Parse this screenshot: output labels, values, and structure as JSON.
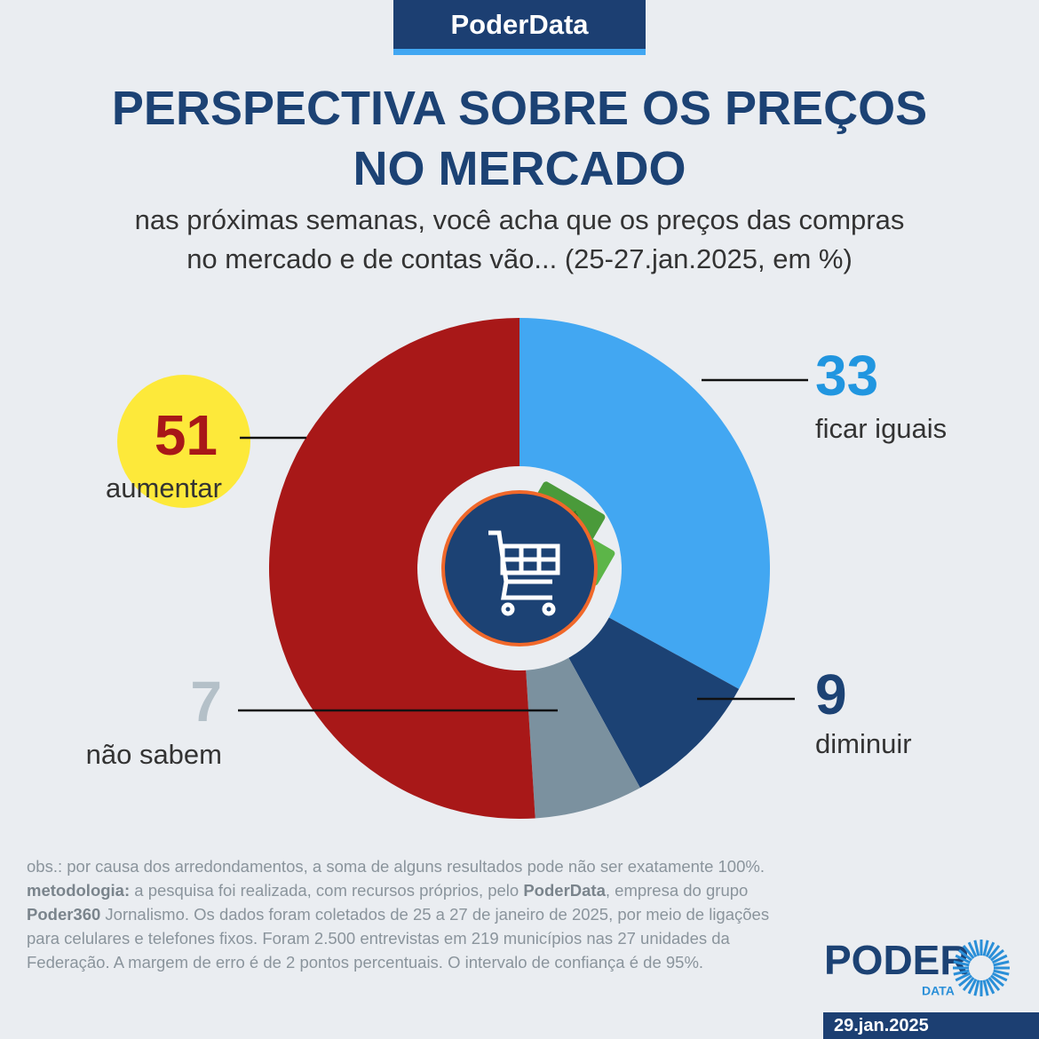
{
  "header": "PoderData",
  "chart_data": {
    "type": "pie",
    "title": [
      "PERSPECTIVA SOBRE OS PREÇOS",
      "NO MERCADO"
    ],
    "subtitle": [
      "nas próximas semanas, você acha que os preços das compras",
      "no mercado e de contas vão... (25-27.jan.2025, em %)"
    ],
    "categories": [
      "ficar iguais",
      "diminuir",
      "não sabem",
      "aumentar"
    ],
    "values": [
      33,
      9,
      7,
      51
    ],
    "colors": [
      "#42a7f2",
      "#1c4274",
      "#7b919f",
      "#a81818"
    ],
    "start_angle": "top",
    "direction": "clockwise"
  },
  "notes": {
    "obs": "obs.: por causa dos arredondamentos, a soma de alguns resultados pode não ser exatamente 100%.",
    "methodology": [
      "metodologia:",
      " a pesquisa foi realizada, com recursos próprios, pelo ",
      "PoderData",
      ", empresa do grupo ",
      "Poder360",
      " Jornalismo. Os dados foram coletados de 25 a 27 de janeiro de 2025, por meio de ligações para celulares e telefones fixos. Foram 2.500 entrevistas em 219 municípios nas 27 unidades da Federação. A margem de erro é de 2 pontos percentuais. O intervalo de confiança é de 95%."
    ]
  },
  "logo": {
    "main": "PODER",
    "sub": "DATA"
  },
  "date": "29.jan.2025"
}
